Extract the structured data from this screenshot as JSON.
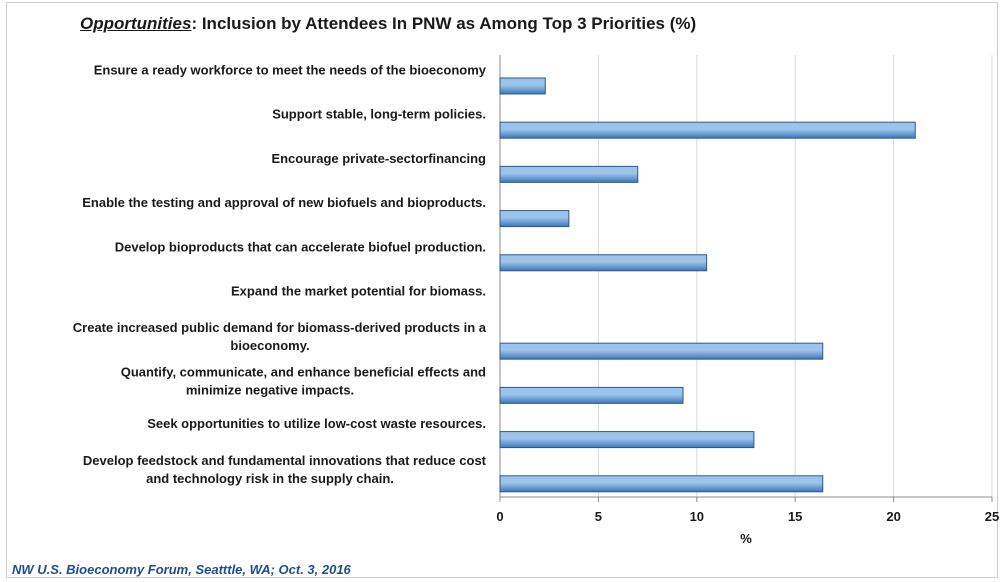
{
  "footnote": "NW U.S. Bioeconomy Forum, Seatttle, WA; Oct. 3, 2016",
  "colors": {
    "bar_fill_light": "#9cc3ea",
    "bar_fill_dark": "#3f78b8",
    "bar_stroke": "#2b5a8e",
    "grid": "#d9d9d9",
    "axis": "#8c8c8c",
    "text": "#1a1a1a"
  },
  "chart_data": {
    "type": "bar",
    "orientation": "horizontal",
    "title_lead": "Opportunities",
    "title_rest": ":  Inclusion by Attendees In PNW as Among Top 3 Priorities (%)",
    "xlabel": "%",
    "ylabel": "",
    "xlim": [
      0,
      25
    ],
    "xticks": [
      "0",
      "5",
      "10",
      "15",
      "20",
      "25"
    ],
    "grid": "vertical",
    "legend": "none",
    "categories": [
      "Ensure a ready workforce to meet the needs of the bioeconomy",
      "Support stable, long-term policies.",
      "Encourage private-sectorfinancing",
      "Enable the testing and approval of new biofuels and bioproducts.",
      "Develop bioproducts that can accelerate biofuel production.",
      "Expand the market potential for biomass.",
      "Create increased public demand for biomass-derived products in a bioeconomy.",
      "Quantify, communicate, and enhance beneficial effects and minimize negative impacts.",
      "Seek opportunities to utilize low-cost waste resources.",
      "Develop feedstock and fundamental innovations that reduce cost and technology risk in the supply chain."
    ],
    "category_lines": [
      [
        "Ensure a ready workforce to meet the needs of the bioeconomy"
      ],
      [
        "Support stable, long-term policies."
      ],
      [
        "Encourage private-sectorfinancing"
      ],
      [
        "Enable the testing and approval of new biofuels and bioproducts."
      ],
      [
        "Develop bioproducts that can accelerate biofuel production."
      ],
      [
        "Expand the market potential for biomass."
      ],
      [
        "Create increased public demand for biomass-derived products in a",
        "bioeconomy."
      ],
      [
        "Quantify, communicate, and enhance beneficial effects and",
        "minimize negative impacts."
      ],
      [
        "Seek opportunities to utilize low-cost waste resources."
      ],
      [
        "Develop feedstock and fundamental innovations that reduce cost",
        "and technology risk in the supply chain."
      ]
    ],
    "values": [
      2.3,
      21.1,
      7.0,
      3.5,
      10.5,
      0,
      16.4,
      9.3,
      12.9,
      16.4
    ]
  }
}
